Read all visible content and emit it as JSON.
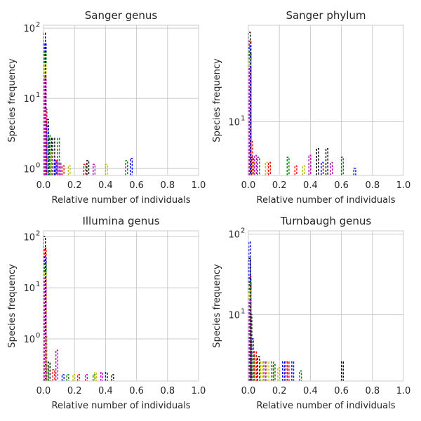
{
  "chart_data": [
    {
      "type": "histogram",
      "title": "Sanger genus",
      "xlabel": "Relative number of individuals",
      "ylabel": "Species frequency",
      "xlim": [
        0,
        1
      ],
      "yscale": "log",
      "ylim": [
        0.8,
        110
      ],
      "xticks": [
        "0.0",
        "0.2",
        "0.4",
        "0.6",
        "0.8",
        "1.0"
      ],
      "yticks": [
        {
          "value": 1,
          "label": "10",
          "exp": "0"
        },
        {
          "value": 10,
          "label": "10",
          "exp": "1"
        },
        {
          "value": 100,
          "label": "10",
          "exp": "2"
        }
      ],
      "grid": true,
      "series": [
        {
          "color": "#000000",
          "bins": [
            [
              0.0,
              85
            ],
            [
              0.02,
              5
            ],
            [
              0.04,
              2.7
            ],
            [
              0.06,
              2.7
            ],
            [
              0.28,
              1.3
            ]
          ]
        },
        {
          "color": "#ff0000",
          "bins": [
            [
              0.01,
              7
            ],
            [
              0.03,
              2
            ],
            [
              0.08,
              1.3
            ],
            [
              0.12,
              1.1
            ],
            [
              0.26,
              1.15
            ]
          ]
        },
        {
          "color": "#0000ff",
          "bins": [
            [
              0.005,
              60
            ],
            [
              0.02,
              4
            ],
            [
              0.07,
              1.3
            ],
            [
              0.56,
              1.4
            ]
          ]
        },
        {
          "color": "#008000",
          "bins": [
            [
              0.005,
              45
            ],
            [
              0.03,
              3
            ],
            [
              0.09,
              2.7
            ],
            [
              0.53,
              1.3
            ]
          ]
        },
        {
          "color": "#bfbf00",
          "bins": [
            [
              0.005,
              30
            ],
            [
              0.05,
              1.7
            ],
            [
              0.16,
              1.1
            ],
            [
              0.4,
              1.15
            ]
          ]
        },
        {
          "color": "#bf00bf",
          "bins": [
            [
              0.005,
              20
            ],
            [
              0.1,
              1.2
            ],
            [
              0.32,
              1.15
            ]
          ]
        }
      ]
    },
    {
      "type": "histogram",
      "title": "Sanger phylum",
      "xlabel": "Relative number of individuals",
      "ylabel": "Species frequency",
      "xlim": [
        0,
        1
      ],
      "yscale": "log",
      "ylim": [
        2.5,
        120
      ],
      "xticks": [
        "0.0",
        "0.2",
        "0.4",
        "0.6",
        "0.8",
        "1.0"
      ],
      "yticks": [
        {
          "value": 10,
          "label": "10",
          "exp": "1"
        }
      ],
      "grid": true,
      "series": [
        {
          "color": "#000000",
          "bins": [
            [
              0.0,
              100
            ],
            [
              0.005,
              12
            ],
            [
              0.44,
              5
            ],
            [
              0.5,
              5
            ]
          ]
        },
        {
          "color": "#ff0000",
          "bins": [
            [
              0.005,
              80
            ],
            [
              0.015,
              6
            ],
            [
              0.13,
              3.5
            ],
            [
              0.3,
              3.2
            ]
          ]
        },
        {
          "color": "#0000ff",
          "bins": [
            [
              0.003,
              70
            ],
            [
              0.02,
              4
            ],
            [
              0.47,
              3.5
            ],
            [
              0.68,
              3
            ]
          ]
        },
        {
          "color": "#008000",
          "bins": [
            [
              0.005,
              60
            ],
            [
              0.06,
              4
            ],
            [
              0.25,
              4
            ],
            [
              0.6,
              4
            ]
          ]
        },
        {
          "color": "#bfbf00",
          "bins": [
            [
              0.005,
              50
            ],
            [
              0.03,
              3.5
            ],
            [
              0.11,
              3.5
            ],
            [
              0.35,
              3.2
            ]
          ]
        },
        {
          "color": "#bf00bf",
          "bins": [
            [
              0.005,
              40
            ],
            [
              0.04,
              4.2
            ],
            [
              0.39,
              4.2
            ],
            [
              0.53,
              3.5
            ]
          ]
        }
      ]
    },
    {
      "type": "histogram",
      "title": "Illumina genus",
      "xlabel": "Relative number of individuals",
      "ylabel": "Species frequency",
      "xlim": [
        0,
        1
      ],
      "yscale": "log",
      "ylim": [
        0.15,
        130
      ],
      "xticks": [
        "0.0",
        "0.2",
        "0.4",
        "0.6",
        "0.8",
        "1.0"
      ],
      "yticks": [
        {
          "value": 1,
          "label": "10",
          "exp": "0"
        },
        {
          "value": 10,
          "label": "10",
          "exp": "1"
        },
        {
          "value": 100,
          "label": "10",
          "exp": "2"
        }
      ],
      "grid": true,
      "series": [
        {
          "color": "#000000",
          "bins": [
            [
              0.0,
              100
            ],
            [
              0.03,
              0.35
            ],
            [
              0.44,
              0.2
            ]
          ]
        },
        {
          "color": "#ff0000",
          "bins": [
            [
              0.005,
              60
            ],
            [
              0.06,
              0.25
            ],
            [
              0.22,
              0.2
            ]
          ]
        },
        {
          "color": "#0000ff",
          "bins": [
            [
              0.005,
              40
            ],
            [
              0.12,
              0.2
            ],
            [
              0.4,
              0.22
            ]
          ]
        },
        {
          "color": "#008000",
          "bins": [
            [
              0.005,
              30
            ],
            [
              0.02,
              0.3
            ],
            [
              0.15,
              0.2
            ],
            [
              0.32,
              0.2
            ]
          ]
        },
        {
          "color": "#bfbf00",
          "bins": [
            [
              0.005,
              20
            ],
            [
              0.01,
              1.2
            ],
            [
              0.19,
              0.2
            ],
            [
              0.33,
              0.22
            ]
          ]
        },
        {
          "color": "#bf00bf",
          "bins": [
            [
              0.005,
              15
            ],
            [
              0.08,
              0.6
            ],
            [
              0.27,
              0.2
            ],
            [
              0.37,
              0.22
            ]
          ]
        }
      ]
    },
    {
      "type": "histogram",
      "title": "Turnbaugh genus",
      "xlabel": "Relative number of individuals",
      "ylabel": "Species frequency",
      "xlim": [
        0,
        1
      ],
      "yscale": "log",
      "ylim": [
        1.5,
        110
      ],
      "xticks": [
        "0.0",
        "0.2",
        "0.4",
        "0.6",
        "0.8",
        "1.0"
      ],
      "yticks": [
        {
          "value": 10,
          "label": "10",
          "exp": "1"
        },
        {
          "value": 100,
          "label": "10",
          "exp": "2"
        }
      ],
      "grid": true,
      "series": [
        {
          "color": "#000000",
          "bins": [
            [
              0.0,
              50
            ],
            [
              0.01,
              10
            ],
            [
              0.06,
              3
            ],
            [
              0.6,
              2.6
            ]
          ]
        },
        {
          "color": "#ff0000",
          "bins": [
            [
              0.005,
              30
            ],
            [
              0.04,
              3.5
            ],
            [
              0.15,
              2.6
            ],
            [
              0.25,
              2.6
            ]
          ]
        },
        {
          "color": "#0000ff",
          "bins": [
            [
              0.003,
              80
            ],
            [
              0.02,
              5
            ],
            [
              0.22,
              2.6
            ],
            [
              0.28,
              2.6
            ]
          ]
        },
        {
          "color": "#008000",
          "bins": [
            [
              0.005,
              25
            ],
            [
              0.03,
              3
            ],
            [
              0.16,
              2.4
            ],
            [
              0.33,
              2
            ]
          ]
        },
        {
          "color": "#bfbf00",
          "bins": [
            [
              0.005,
              20
            ],
            [
              0.08,
              2.6
            ],
            [
              0.12,
              2.6
            ],
            [
              0.19,
              2.2
            ]
          ]
        },
        {
          "color": "#bf00bf",
          "bins": [
            [
              0.005,
              15
            ],
            [
              0.1,
              2.6
            ],
            [
              0.24,
              2.6
            ]
          ]
        }
      ]
    }
  ]
}
